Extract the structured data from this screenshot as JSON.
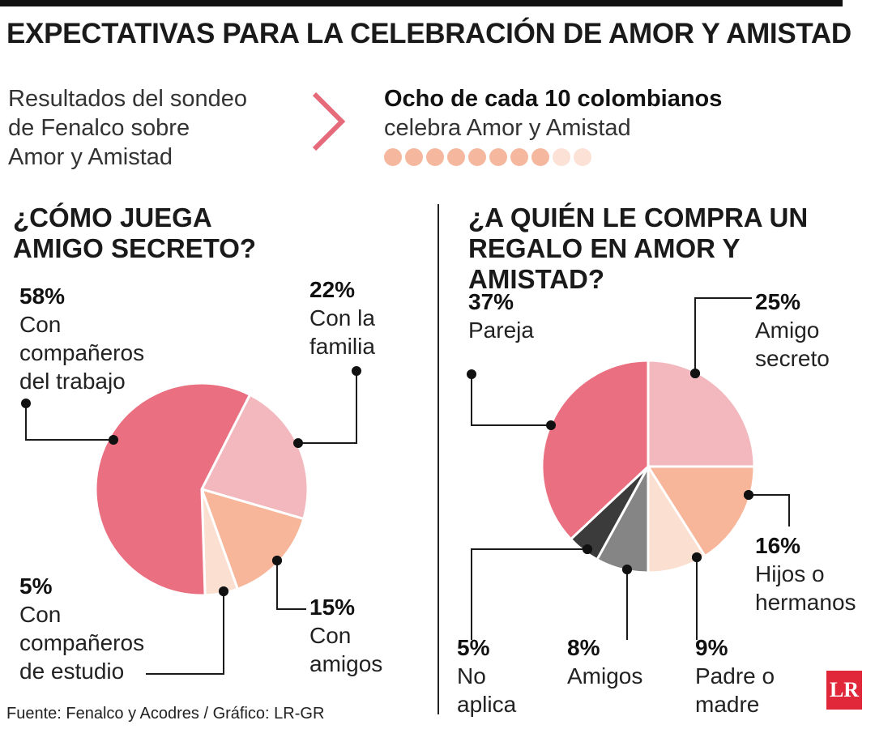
{
  "header": {
    "title": "EXPECTATIVAS PARA LA CELEBRACIÓN DE AMOR Y AMISTAD",
    "intro_lines": [
      "Resultados del sondeo",
      "de Fenalco sobre",
      "Amor y Amistad"
    ],
    "highlight_strong": "Ocho de cada 10 colombianos",
    "highlight_light": "celebra Amor y Amistad",
    "dots": {
      "filled": 8,
      "total": 10,
      "filled_color": "#f5b89e",
      "empty_color": "#fbe1d6"
    }
  },
  "chart_data": [
    {
      "type": "pie",
      "title_lines": [
        "¿CÓMO JUEGA",
        "AMIGO SECRETO?"
      ],
      "slices": [
        {
          "label_lines": [
            "Con",
            "compañeros",
            "del trabajo"
          ],
          "value": 58,
          "pct_label": "58%",
          "color": "#ea6f80"
        },
        {
          "label_lines": [
            "Con la",
            "familia"
          ],
          "value": 22,
          "pct_label": "22%",
          "color": "#f2b8bd"
        },
        {
          "label_lines": [
            "Con",
            "amigos"
          ],
          "value": 15,
          "pct_label": "15%",
          "color": "#f7b599"
        },
        {
          "label_lines": [
            "Con",
            "compañeros",
            "de estudio"
          ],
          "value": 5,
          "pct_label": "5%",
          "color": "#fbdfd1"
        }
      ]
    },
    {
      "type": "pie",
      "title_lines": [
        "¿A QUIÉN LE COMPRA UN",
        "REGALO EN AMOR Y AMISTAD?"
      ],
      "slices": [
        {
          "label_lines": [
            "Amigo",
            "secreto"
          ],
          "value": 25,
          "pct_label": "25%",
          "color": "#f2b8bd"
        },
        {
          "label_lines": [
            "Hijos o",
            "hermanos"
          ],
          "value": 16,
          "pct_label": "16%",
          "color": "#f7b599"
        },
        {
          "label_lines": [
            "Padre o",
            "madre"
          ],
          "value": 9,
          "pct_label": "9%",
          "color": "#fbdfd1"
        },
        {
          "label_lines": [
            "Amigos"
          ],
          "value": 8,
          "pct_label": "8%",
          "color": "#858585"
        },
        {
          "label_lines": [
            "No",
            "aplica"
          ],
          "value": 5,
          "pct_label": "5%",
          "color": "#3b3b3b"
        },
        {
          "label_lines": [
            "Pareja"
          ],
          "value": 37,
          "pct_label": "37%",
          "color": "#ea6f80"
        }
      ]
    }
  ],
  "footer": {
    "source": "Fuente: Fenalco y Acodres / Gráfico: LR-GR",
    "logo": "LR"
  }
}
